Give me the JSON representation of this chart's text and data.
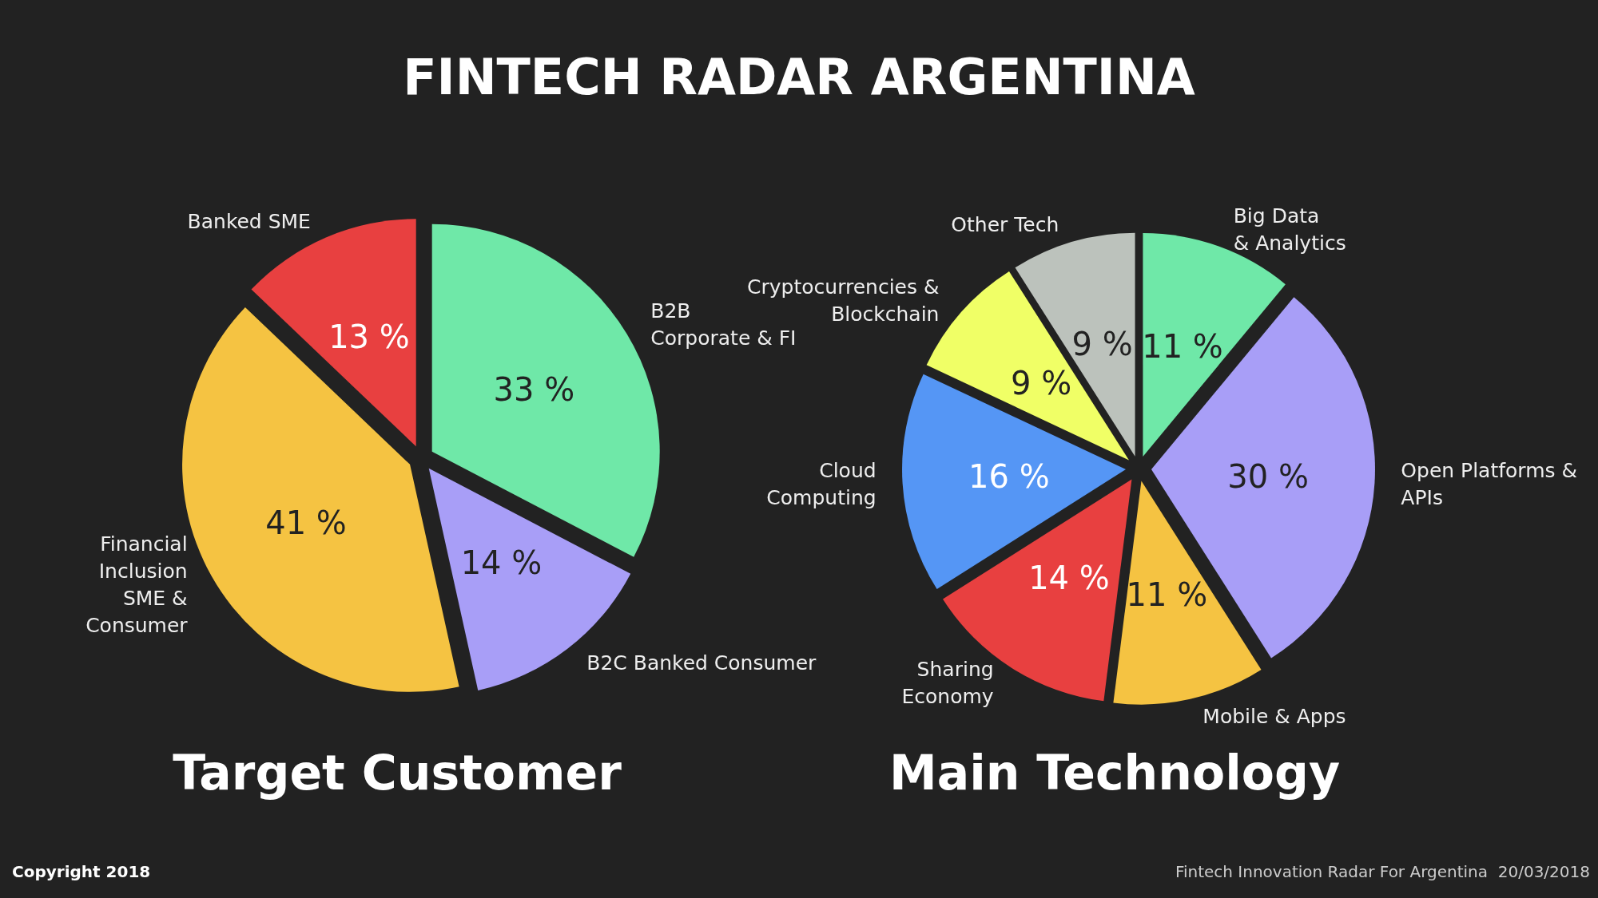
{
  "chart_data": [
    {
      "type": "pie",
      "title": "Target Customer",
      "categories": [
        "B2B\nCorporate & FI",
        "B2C Banked Consumer",
        "Financial\nInclusion\nSME &\nConsumer",
        "Banked SME"
      ],
      "values": [
        33,
        14,
        41,
        13
      ],
      "colors": [
        "#6fe8a8",
        "#a89ef7",
        "#f5c342",
        "#e84040"
      ],
      "value_labels": [
        "33 %",
        "14 %",
        "41 %",
        "13 %"
      ],
      "legend": false,
      "annotations": [
        "FINTECH RADAR ARGENTINA",
        "Copyright 2018"
      ]
    },
    {
      "type": "pie",
      "title": "Main Technology",
      "categories": [
        "Big Data\n& Analytics",
        "Open Platforms &\nAPIs",
        "Mobile & Apps",
        "Sharing\nEconomy",
        "Cloud\nComputing",
        "Cryptocurrencies &\nBlockchain",
        "Other Tech"
      ],
      "values": [
        11,
        30,
        11,
        14,
        16,
        9,
        9
      ],
      "colors": [
        "#6fe8a8",
        "#a89ef7",
        "#f5c342",
        "#e84040",
        "#5596f5",
        "#f0ff66",
        "#bcc2bc"
      ],
      "value_labels": [
        "11 %",
        "30 %",
        "11 %",
        "14 %",
        "16 %",
        "9 %",
        "9 %"
      ],
      "legend": false,
      "annotations": [
        "Fintech Innovation Radar For Argentina  20/03/2018"
      ]
    }
  ]
}
